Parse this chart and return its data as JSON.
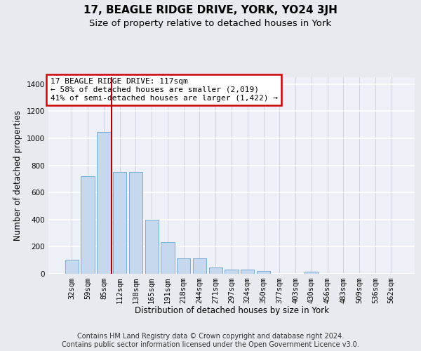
{
  "title": "17, BEAGLE RIDGE DRIVE, YORK, YO24 3JH",
  "subtitle": "Size of property relative to detached houses in York",
  "xlabel": "Distribution of detached houses by size in York",
  "ylabel": "Number of detached properties",
  "categories": [
    "32sqm",
    "59sqm",
    "85sqm",
    "112sqm",
    "138sqm",
    "165sqm",
    "191sqm",
    "218sqm",
    "244sqm",
    "271sqm",
    "297sqm",
    "324sqm",
    "350sqm",
    "377sqm",
    "403sqm",
    "430sqm",
    "456sqm",
    "483sqm",
    "509sqm",
    "536sqm",
    "562sqm"
  ],
  "values": [
    105,
    720,
    1045,
    750,
    750,
    400,
    235,
    115,
    115,
    45,
    30,
    30,
    20,
    0,
    0,
    15,
    0,
    0,
    0,
    0,
    0
  ],
  "bar_color": "#c5d8ee",
  "bar_edge_color": "#7aadd4",
  "vline_color": "#aa0000",
  "vline_x": 2.5,
  "annotation_text": "17 BEAGLE RIDGE DRIVE: 117sqm\n← 58% of detached houses are smaller (2,019)\n41% of semi-detached houses are larger (1,422) →",
  "annotation_box_color": "white",
  "annotation_box_edge_color": "#cc0000",
  "ylim": [
    0,
    1450
  ],
  "yticks": [
    0,
    200,
    400,
    600,
    800,
    1000,
    1200,
    1400
  ],
  "footer": "Contains HM Land Registry data © Crown copyright and database right 2024.\nContains public sector information licensed under the Open Government Licence v3.0.",
  "bg_color": "#e8eaf0",
  "plot_bg_color": "#eef0f8",
  "title_fontsize": 11,
  "subtitle_fontsize": 9.5,
  "axis_label_fontsize": 8.5,
  "tick_fontsize": 7.5,
  "footer_fontsize": 7,
  "annotation_fontsize": 8
}
